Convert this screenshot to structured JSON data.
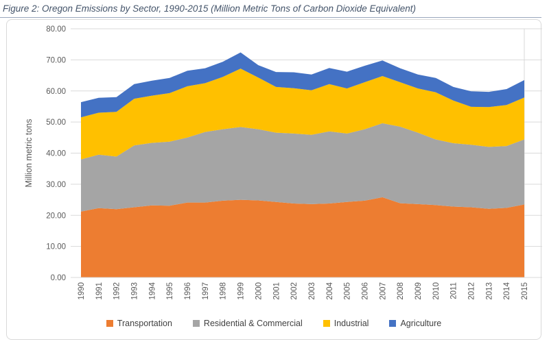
{
  "header": {
    "title": "Figure 2: Oregon Emissions by Sector, 1990-2015 (Million Metric Tons of Carbon Dioxide Equivalent)"
  },
  "chart_data": {
    "type": "area",
    "stacked": true,
    "title": "",
    "xlabel": "",
    "ylabel": "Million metric tons",
    "ylim": [
      0,
      80
    ],
    "y_tick_step": 10,
    "y_tick_labels": [
      "0.00",
      "10.00",
      "20.00",
      "30.00",
      "40.00",
      "50.00",
      "60.00",
      "70.00",
      "80.00"
    ],
    "grid": true,
    "legend_position": "bottom",
    "categories": [
      1990,
      1991,
      1992,
      1993,
      1994,
      1995,
      1996,
      1997,
      1998,
      1999,
      2000,
      2001,
      2002,
      2003,
      2004,
      2005,
      2006,
      2007,
      2008,
      2009,
      2010,
      2011,
      2012,
      2013,
      2014,
      2015
    ],
    "series": [
      {
        "name": "Transportation",
        "color": "#ED7D31",
        "values": [
          21.2,
          22.3,
          22.0,
          22.6,
          23.2,
          23.1,
          24.1,
          24.1,
          24.7,
          25.0,
          24.8,
          24.3,
          23.8,
          23.6,
          23.8,
          24.3,
          24.7,
          25.8,
          23.9,
          23.6,
          23.3,
          22.8,
          22.6,
          22.1,
          22.4,
          23.5
        ]
      },
      {
        "name": "Residential & Commercial",
        "color": "#A5A5A5",
        "values": [
          16.8,
          17.2,
          16.9,
          19.9,
          20.1,
          20.6,
          20.9,
          22.7,
          23.0,
          23.4,
          22.9,
          22.3,
          22.5,
          22.3,
          23.2,
          22.0,
          23.0,
          23.8,
          24.6,
          23.0,
          21.1,
          20.4,
          20.1,
          19.9,
          19.9,
          20.9
        ]
      },
      {
        "name": "Industrial",
        "color": "#FFC000",
        "values": [
          13.5,
          13.5,
          14.4,
          15.0,
          15.2,
          15.6,
          16.5,
          15.7,
          16.8,
          18.8,
          16.6,
          14.7,
          14.6,
          14.3,
          15.2,
          14.5,
          15.1,
          15.2,
          14.3,
          14.2,
          15.2,
          13.7,
          12.2,
          12.8,
          13.2,
          13.5
        ]
      },
      {
        "name": "Agriculture",
        "color": "#4472C4",
        "values": [
          4.9,
          4.8,
          4.7,
          4.7,
          4.8,
          4.9,
          5.0,
          4.8,
          4.9,
          5.2,
          4.0,
          4.8,
          5.1,
          5.1,
          5.2,
          5.4,
          5.3,
          5.0,
          4.5,
          4.5,
          4.6,
          4.4,
          5.0,
          4.9,
          5.1,
          5.6
        ]
      }
    ]
  },
  "colors": {
    "grid": "#D9D9D9",
    "axis_line": "#D9D9D9",
    "axis_text": "#595959",
    "title_text": "#44546A",
    "title_rule": "#9AA7BC",
    "frame_border": "#D9D9D9",
    "legend_text": "#404040"
  }
}
